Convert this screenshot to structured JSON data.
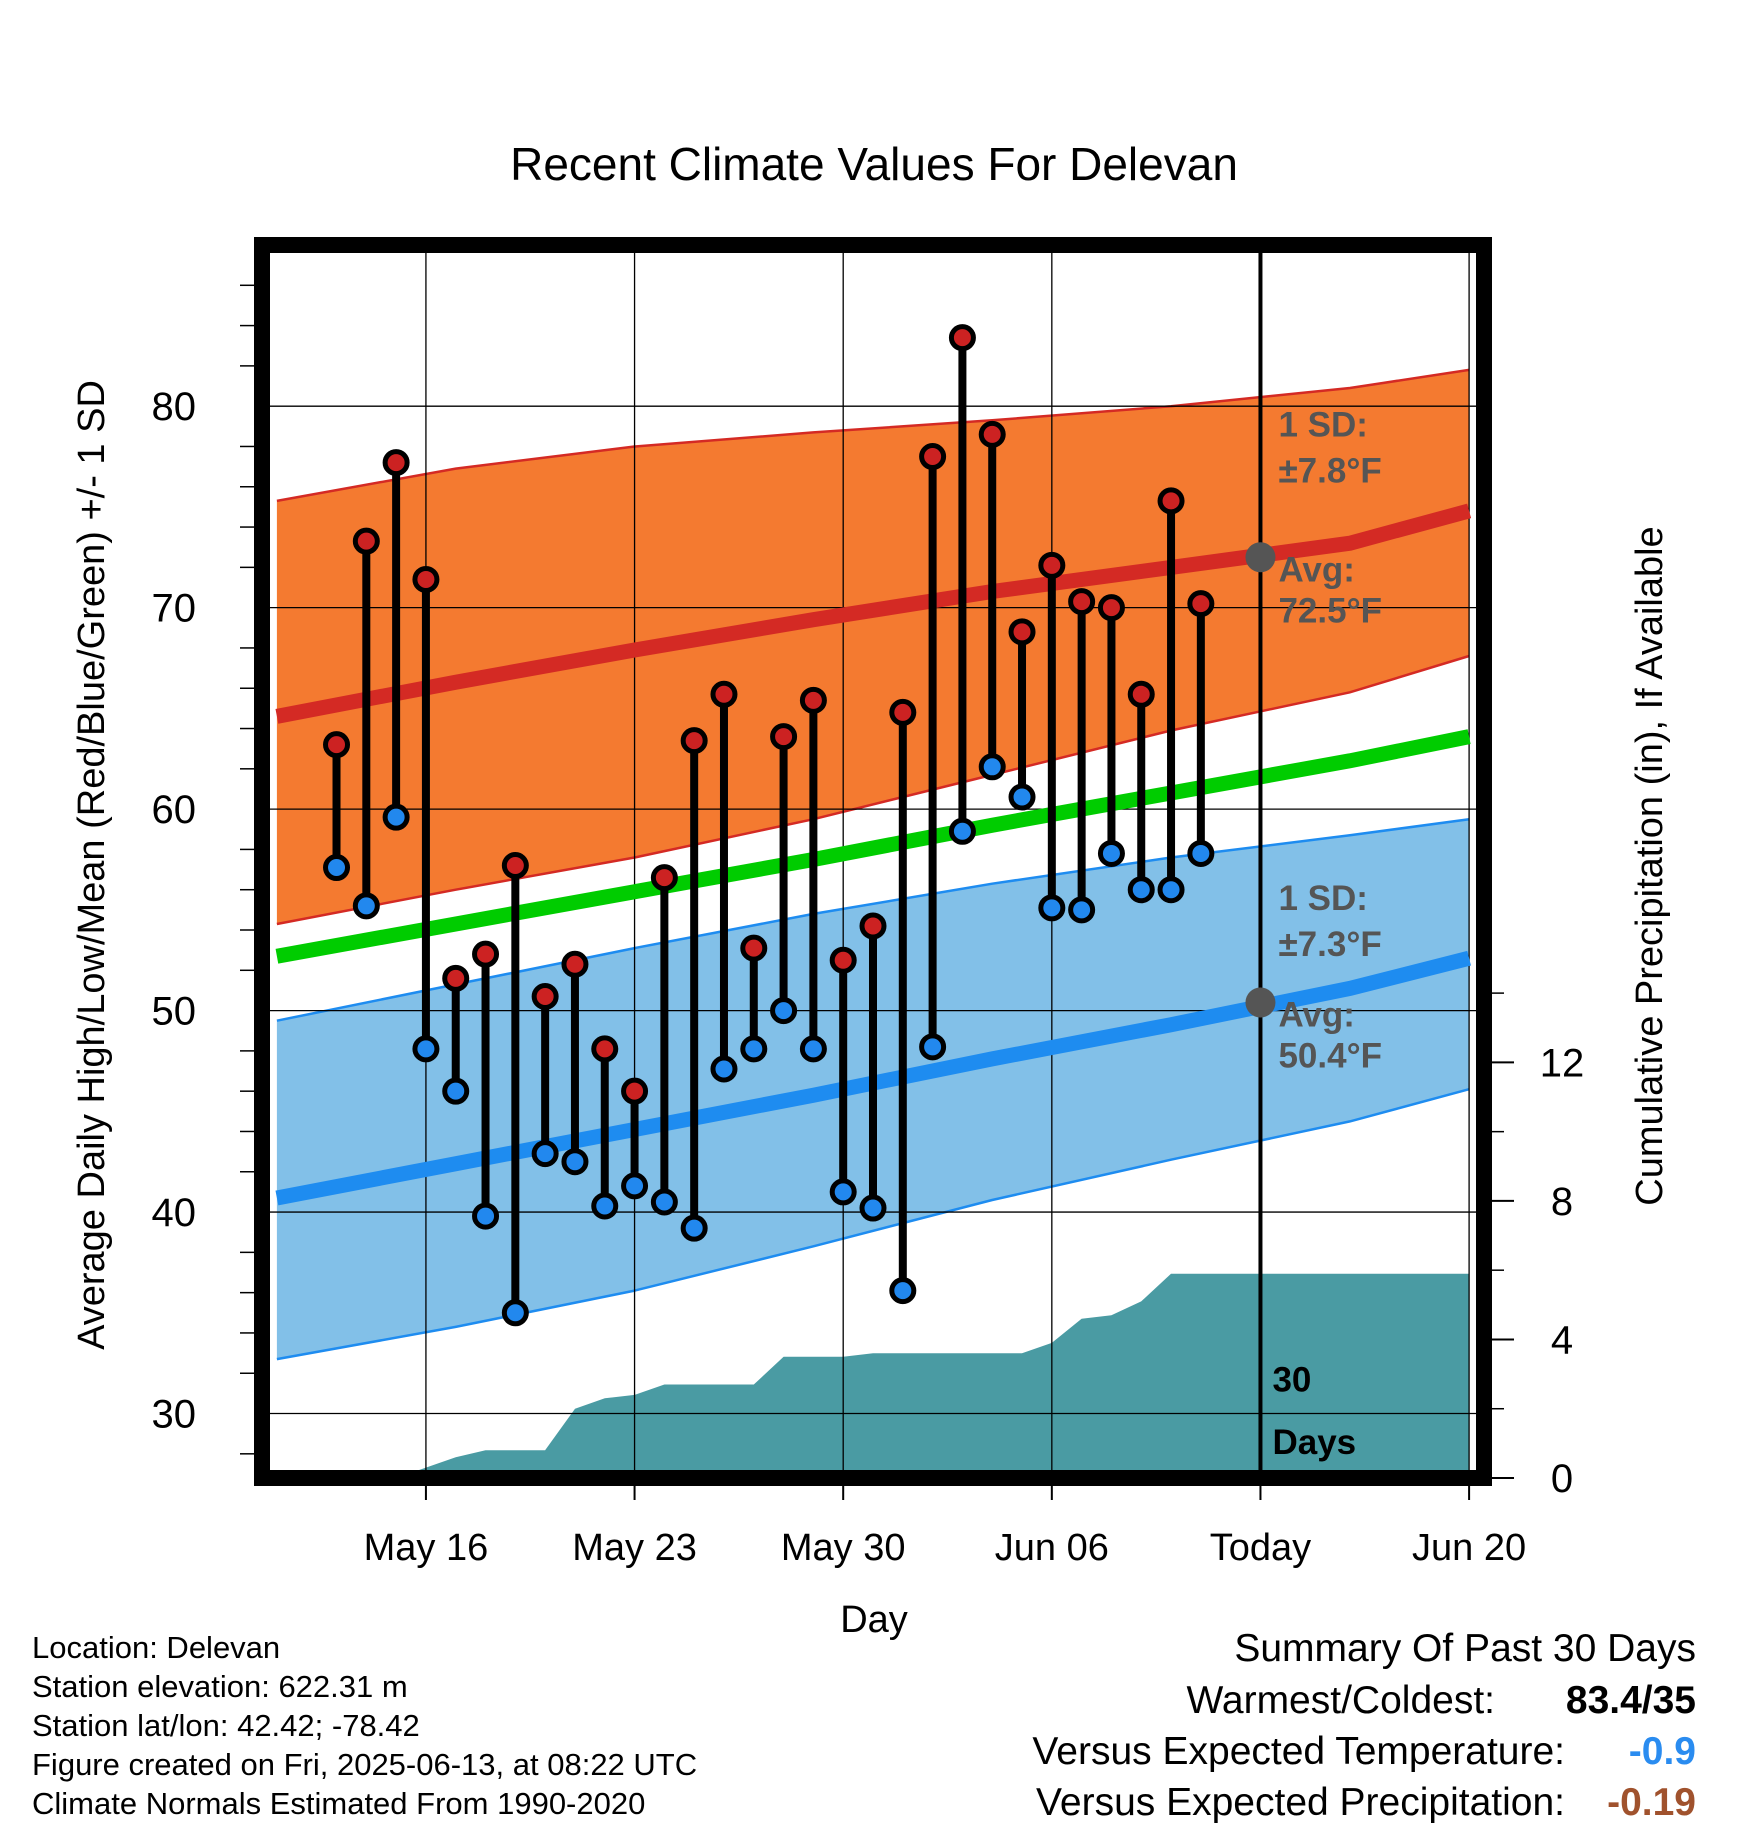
{
  "chart_data": {
    "type": "line",
    "title": "Recent Climate Values For Delevan",
    "xlabel": "Day",
    "ylabel": "Average Daily High/Low/Mean (Red/Blue/Green) +/- 1 SD",
    "y2label": "Cumulative Precipitation (in), If Available",
    "ylim": [
      26.8,
      88
    ],
    "y2lim": [
      0,
      35.6
    ],
    "xlim": [
      -1.5,
      39.5
    ],
    "x_note": "x = day offset from May 12",
    "x_ticks": [
      {
        "x": 4,
        "label": "May 16"
      },
      {
        "x": 11,
        "label": "May 23"
      },
      {
        "x": 18,
        "label": "May 30"
      },
      {
        "x": 25,
        "label": "Jun 06"
      },
      {
        "x": 32,
        "label": "Today"
      },
      {
        "x": 39,
        "label": "Jun 20"
      }
    ],
    "y_ticks": [
      30,
      40,
      50,
      60,
      70,
      80
    ],
    "y2_ticks": [
      0,
      4,
      8,
      12
    ],
    "grid": true,
    "today_x": 32,
    "window_label": "30 Days",
    "normals_x": [
      -1,
      5,
      11,
      17,
      23,
      29,
      35,
      39
    ],
    "normal_high": [
      64.6,
      66.3,
      67.9,
      69.4,
      70.8,
      72.0,
      73.2,
      74.8
    ],
    "normal_high_sd_upper": [
      75.3,
      76.9,
      78.0,
      78.7,
      79.3,
      80.0,
      80.9,
      81.8
    ],
    "normal_high_sd_lower": [
      54.3,
      56.0,
      57.6,
      59.5,
      61.7,
      63.9,
      65.8,
      67.6
    ],
    "normal_mean": [
      52.7,
      54.3,
      55.9,
      57.5,
      59.2,
      60.8,
      62.4,
      63.6
    ],
    "normal_low": [
      40.7,
      42.4,
      44.1,
      45.8,
      47.6,
      49.3,
      51.1,
      52.6
    ],
    "normal_low_sd_upper": [
      49.5,
      51.3,
      53.1,
      54.8,
      56.3,
      57.6,
      58.7,
      59.5
    ],
    "normal_low_sd_lower": [
      32.7,
      34.3,
      36.1,
      38.3,
      40.6,
      42.6,
      44.5,
      46.1
    ],
    "series": [
      {
        "name": "High",
        "x": [
          1,
          2,
          3,
          4,
          5,
          6,
          7,
          8,
          9,
          10,
          11,
          12,
          13,
          14,
          15,
          16,
          17,
          18,
          19,
          20,
          21,
          22,
          23,
          24,
          25,
          26,
          27,
          28,
          29,
          30,
          31
        ],
        "values": [
          63.2,
          73.3,
          77.2,
          71.4,
          51.6,
          52.8,
          57.2,
          50.7,
          52.3,
          48.1,
          46.0,
          56.6,
          63.4,
          65.7,
          53.1,
          63.6,
          65.4,
          52.5,
          54.2,
          64.8,
          77.5,
          83.4,
          78.6,
          68.8,
          72.1,
          70.3,
          70.0,
          65.7,
          75.3,
          70.2,
          null
        ]
      },
      {
        "name": "Low",
        "x": [
          1,
          2,
          3,
          4,
          5,
          6,
          7,
          8,
          9,
          10,
          11,
          12,
          13,
          14,
          15,
          16,
          17,
          18,
          19,
          20,
          21,
          22,
          23,
          24,
          25,
          26,
          27,
          28,
          29,
          30,
          31
        ],
        "values": [
          57.1,
          55.2,
          59.6,
          48.1,
          46.0,
          39.8,
          35.0,
          42.9,
          42.5,
          40.3,
          41.3,
          40.5,
          39.2,
          47.1,
          48.1,
          50.0,
          48.1,
          41.0,
          40.2,
          36.1,
          48.2,
          58.9,
          62.1,
          60.6,
          55.1,
          55.0,
          57.8,
          56.0,
          56.0,
          57.8,
          null
        ]
      },
      {
        "name": "Precipitation",
        "x": [
          3,
          4,
          5,
          6,
          7,
          8,
          9,
          10,
          11,
          12,
          13,
          14,
          15,
          16,
          17,
          18,
          19,
          20,
          21,
          22,
          23,
          24,
          25,
          26,
          27,
          28,
          29,
          30,
          31,
          32,
          33,
          34,
          35,
          36,
          37,
          38,
          39
        ],
        "values": [
          0.0,
          0.3,
          0.6,
          0.8,
          0.8,
          0.8,
          2.0,
          2.3,
          2.4,
          2.7,
          2.7,
          2.7,
          2.7,
          3.5,
          3.5,
          3.5,
          3.6,
          3.6,
          3.6,
          3.6,
          3.6,
          3.6,
          3.9,
          4.6,
          4.7,
          5.1,
          5.9,
          5.9,
          5.9,
          5.9,
          5.9,
          5.9,
          5.9,
          5.9,
          5.9,
          5.9,
          5.9
        ]
      }
    ],
    "annotations": {
      "high_sd_line1": "1 SD:",
      "high_sd_line2": "±7.8°F",
      "high_avg_line1": "Avg:",
      "high_avg_line2": "72.5°F",
      "low_sd_line1": "1 SD:",
      "low_sd_line2": "±7.3°F",
      "low_avg_line1": "Avg:",
      "low_avg_line2": "50.4°F",
      "today_high_avg": 72.5,
      "today_low_avg": 50.4
    },
    "colors": {
      "high_band": "#f47a30",
      "high_line": "#d42a24",
      "mean_line": "#00cc00",
      "low_band": "#82c0e8",
      "low_line": "#1e8cf0",
      "precip": "#4a9ba3",
      "high_marker": "#cc2222",
      "low_marker": "#2288ee",
      "avg_marker": "#555555",
      "annotation_text": "#555555"
    }
  },
  "info": {
    "location": "Location: Delevan",
    "elevation": "Station elevation: 622.31 m",
    "latlon": "Station lat/lon: 42.42; -78.42",
    "created": "Figure created on Fri, 2025-06-13, at 08:22 UTC",
    "normals": "Climate Normals Estimated From 1990-2020"
  },
  "summary": {
    "title": "Summary Of Past 30 Days",
    "warmest_label": "Warmest/Coldest:",
    "warmest_value": "83.4/35",
    "temp_label": "Versus Expected Temperature:",
    "temp_value": "-0.9",
    "temp_color": "#2a8cf0",
    "precip_label": "Versus Expected Precipitation:",
    "precip_value": "-0.19",
    "precip_color": "#a0522d"
  }
}
